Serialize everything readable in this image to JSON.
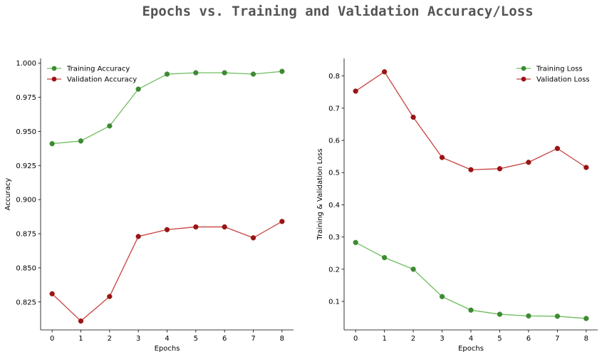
{
  "figure": {
    "title": "Epochs vs. Training and Validation Accuracy/Loss"
  },
  "chart_data": [
    {
      "type": "line",
      "title": "",
      "xlabel": "Epochs",
      "ylabel": "Accuracy",
      "x": [
        0,
        1,
        2,
        3,
        4,
        5,
        6,
        7,
        8
      ],
      "xticks": [
        "0",
        "1",
        "2",
        "3",
        "4",
        "5",
        "6",
        "7",
        "8"
      ],
      "yticks": [
        0.825,
        0.85,
        0.875,
        0.9,
        0.925,
        0.95,
        0.975,
        1.0
      ],
      "ytick_labels": [
        "0.825",
        "0.850",
        "0.875",
        "0.900",
        "0.925",
        "0.950",
        "0.975",
        "1.000"
      ],
      "xlim": [
        -0.4,
        8.4
      ],
      "ylim": [
        0.8045,
        1.0035
      ],
      "grid": false,
      "legend_position": "top-left",
      "series": [
        {
          "name": "Training Accuracy",
          "color": "#6dbd5e",
          "marker_color": "#3e8a33",
          "values": [
            0.941,
            0.943,
            0.954,
            0.981,
            0.992,
            0.993,
            0.993,
            0.992,
            0.994
          ]
        },
        {
          "name": "Validation Accuracy",
          "color": "#c84240",
          "marker_color": "#9a1515",
          "values": [
            0.831,
            0.811,
            0.829,
            0.873,
            0.878,
            0.88,
            0.88,
            0.872,
            0.884
          ]
        }
      ]
    },
    {
      "type": "line",
      "title": "",
      "xlabel": "Epochs",
      "ylabel": "Training & Validation Loss",
      "x": [
        0,
        1,
        2,
        3,
        4,
        5,
        6,
        7,
        8
      ],
      "xticks": [
        "0",
        "1",
        "2",
        "3",
        "4",
        "5",
        "6",
        "7",
        "8"
      ],
      "yticks": [
        0.1,
        0.2,
        0.3,
        0.4,
        0.5,
        0.6,
        0.7,
        0.8
      ],
      "ytick_labels": [
        "0.1",
        "0.2",
        "0.3",
        "0.4",
        "0.5",
        "0.6",
        "0.7",
        "0.8"
      ],
      "xlim": [
        -0.4,
        8.4
      ],
      "ylim": [
        0.0115,
        0.8545
      ],
      "grid": false,
      "legend_position": "top-right",
      "series": [
        {
          "name": "Training Loss",
          "color": "#6dbd5e",
          "marker_color": "#3e8a33",
          "values": [
            0.283,
            0.236,
            0.2,
            0.115,
            0.073,
            0.06,
            0.055,
            0.054,
            0.047
          ]
        },
        {
          "name": "Validation Loss",
          "color": "#c84240",
          "marker_color": "#9a1515",
          "values": [
            0.753,
            0.813,
            0.672,
            0.547,
            0.509,
            0.512,
            0.532,
            0.575,
            0.516
          ]
        }
      ]
    }
  ]
}
